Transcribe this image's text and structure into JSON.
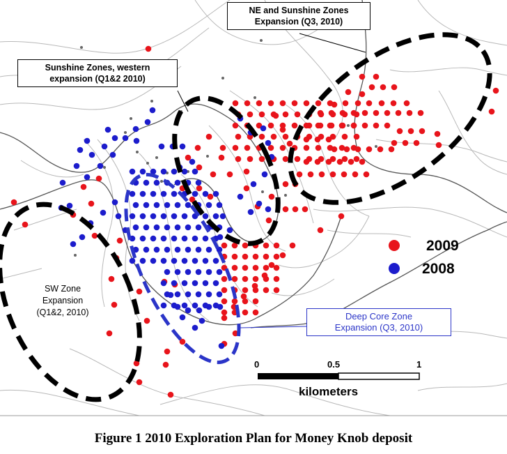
{
  "caption": "Figure 1  2010 Exploration Plan for Money Knob deposit",
  "legend": [
    {
      "label": "2009",
      "color": "#e8141b"
    },
    {
      "label": "2008",
      "color": "#1c1ccc"
    }
  ],
  "zones": [
    {
      "label_lines": [
        "NE and Sunshine Zones",
        "Expansion (Q3, 2010)"
      ],
      "style": "black-dashed"
    },
    {
      "label_lines": [
        "Sunshine Zones, western",
        "expansion (Q1&2 2010)"
      ],
      "style": "black-dashed"
    },
    {
      "label_lines": [
        "SW Zone",
        "Expansion",
        "(Q1&2, 2010)"
      ],
      "style": "black-dashed"
    },
    {
      "label_lines": [
        "Deep Core Zone",
        "Expansion (Q3, 2010)"
      ],
      "style": "blue-dashed"
    }
  ],
  "scale_bar": {
    "ticks": [
      "0",
      "0.5",
      "1"
    ],
    "unit": "kilometers"
  },
  "colors": {
    "drillhole_2009": "#e8141b",
    "drillhole_2008": "#1c1ccc",
    "contour": "#b8b8b8",
    "road": "#555555",
    "zone_black": "#000000",
    "zone_blue": "#2b35c8"
  }
}
